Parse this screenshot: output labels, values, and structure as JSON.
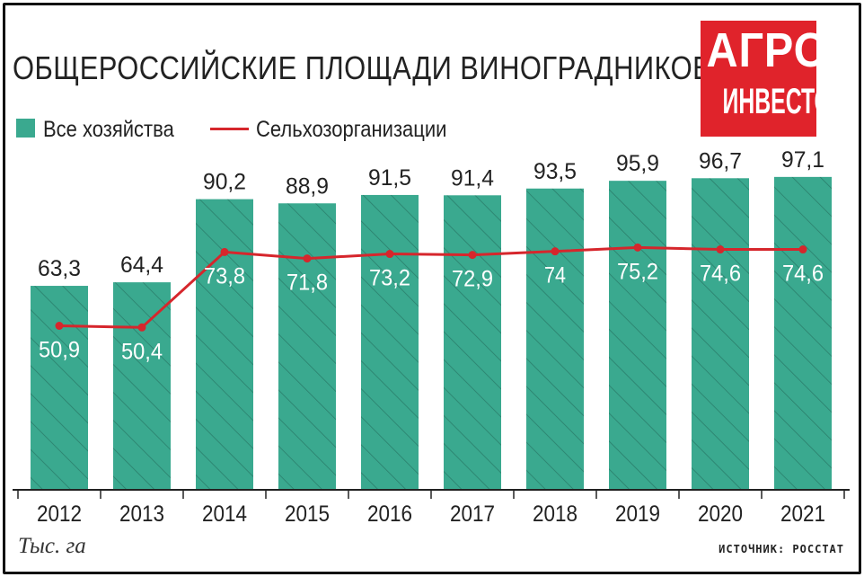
{
  "header": {
    "title": "ОБЩЕРОССИЙСКИЕ ПЛОЩАДИ ВИНОГРАДНИКОВ",
    "logo_line1": "АГРО",
    "logo_line2": "ИНВЕСТОР"
  },
  "footer": {
    "unit": "Тыс. га",
    "source": "ИСТОЧНИК: РОССТАТ"
  },
  "colors": {
    "bar": "#3aa98f",
    "hatch": "#2b7f6c",
    "line": "#d6262c",
    "logo": "#e0232b"
  },
  "chart_data": {
    "type": "bar",
    "categories": [
      "2012",
      "2013",
      "2014",
      "2015",
      "2016",
      "2017",
      "2018",
      "2019",
      "2020",
      "2021"
    ],
    "series": [
      {
        "name": "Все хозяйства",
        "type": "bar",
        "values": [
          63.3,
          64.4,
          90.2,
          88.9,
          91.5,
          91.4,
          93.5,
          95.9,
          96.7,
          97.1
        ],
        "labels": [
          "63,3",
          "64,4",
          "90,2",
          "88,9",
          "91,5",
          "91,4",
          "93,5",
          "95,9",
          "96,7",
          "97,1"
        ]
      },
      {
        "name": "Сельхозорганизации",
        "type": "line",
        "values": [
          50.9,
          50.4,
          73.8,
          71.8,
          73.2,
          72.9,
          74,
          75.2,
          74.6,
          74.6
        ],
        "labels": [
          "50,9",
          "50,4",
          "73,8",
          "71,8",
          "73,2",
          "72,9",
          "74",
          "75,2",
          "74,6",
          "74,6"
        ]
      }
    ],
    "ylim": [
      0,
      100
    ],
    "grid": false,
    "legend": "top-left"
  }
}
